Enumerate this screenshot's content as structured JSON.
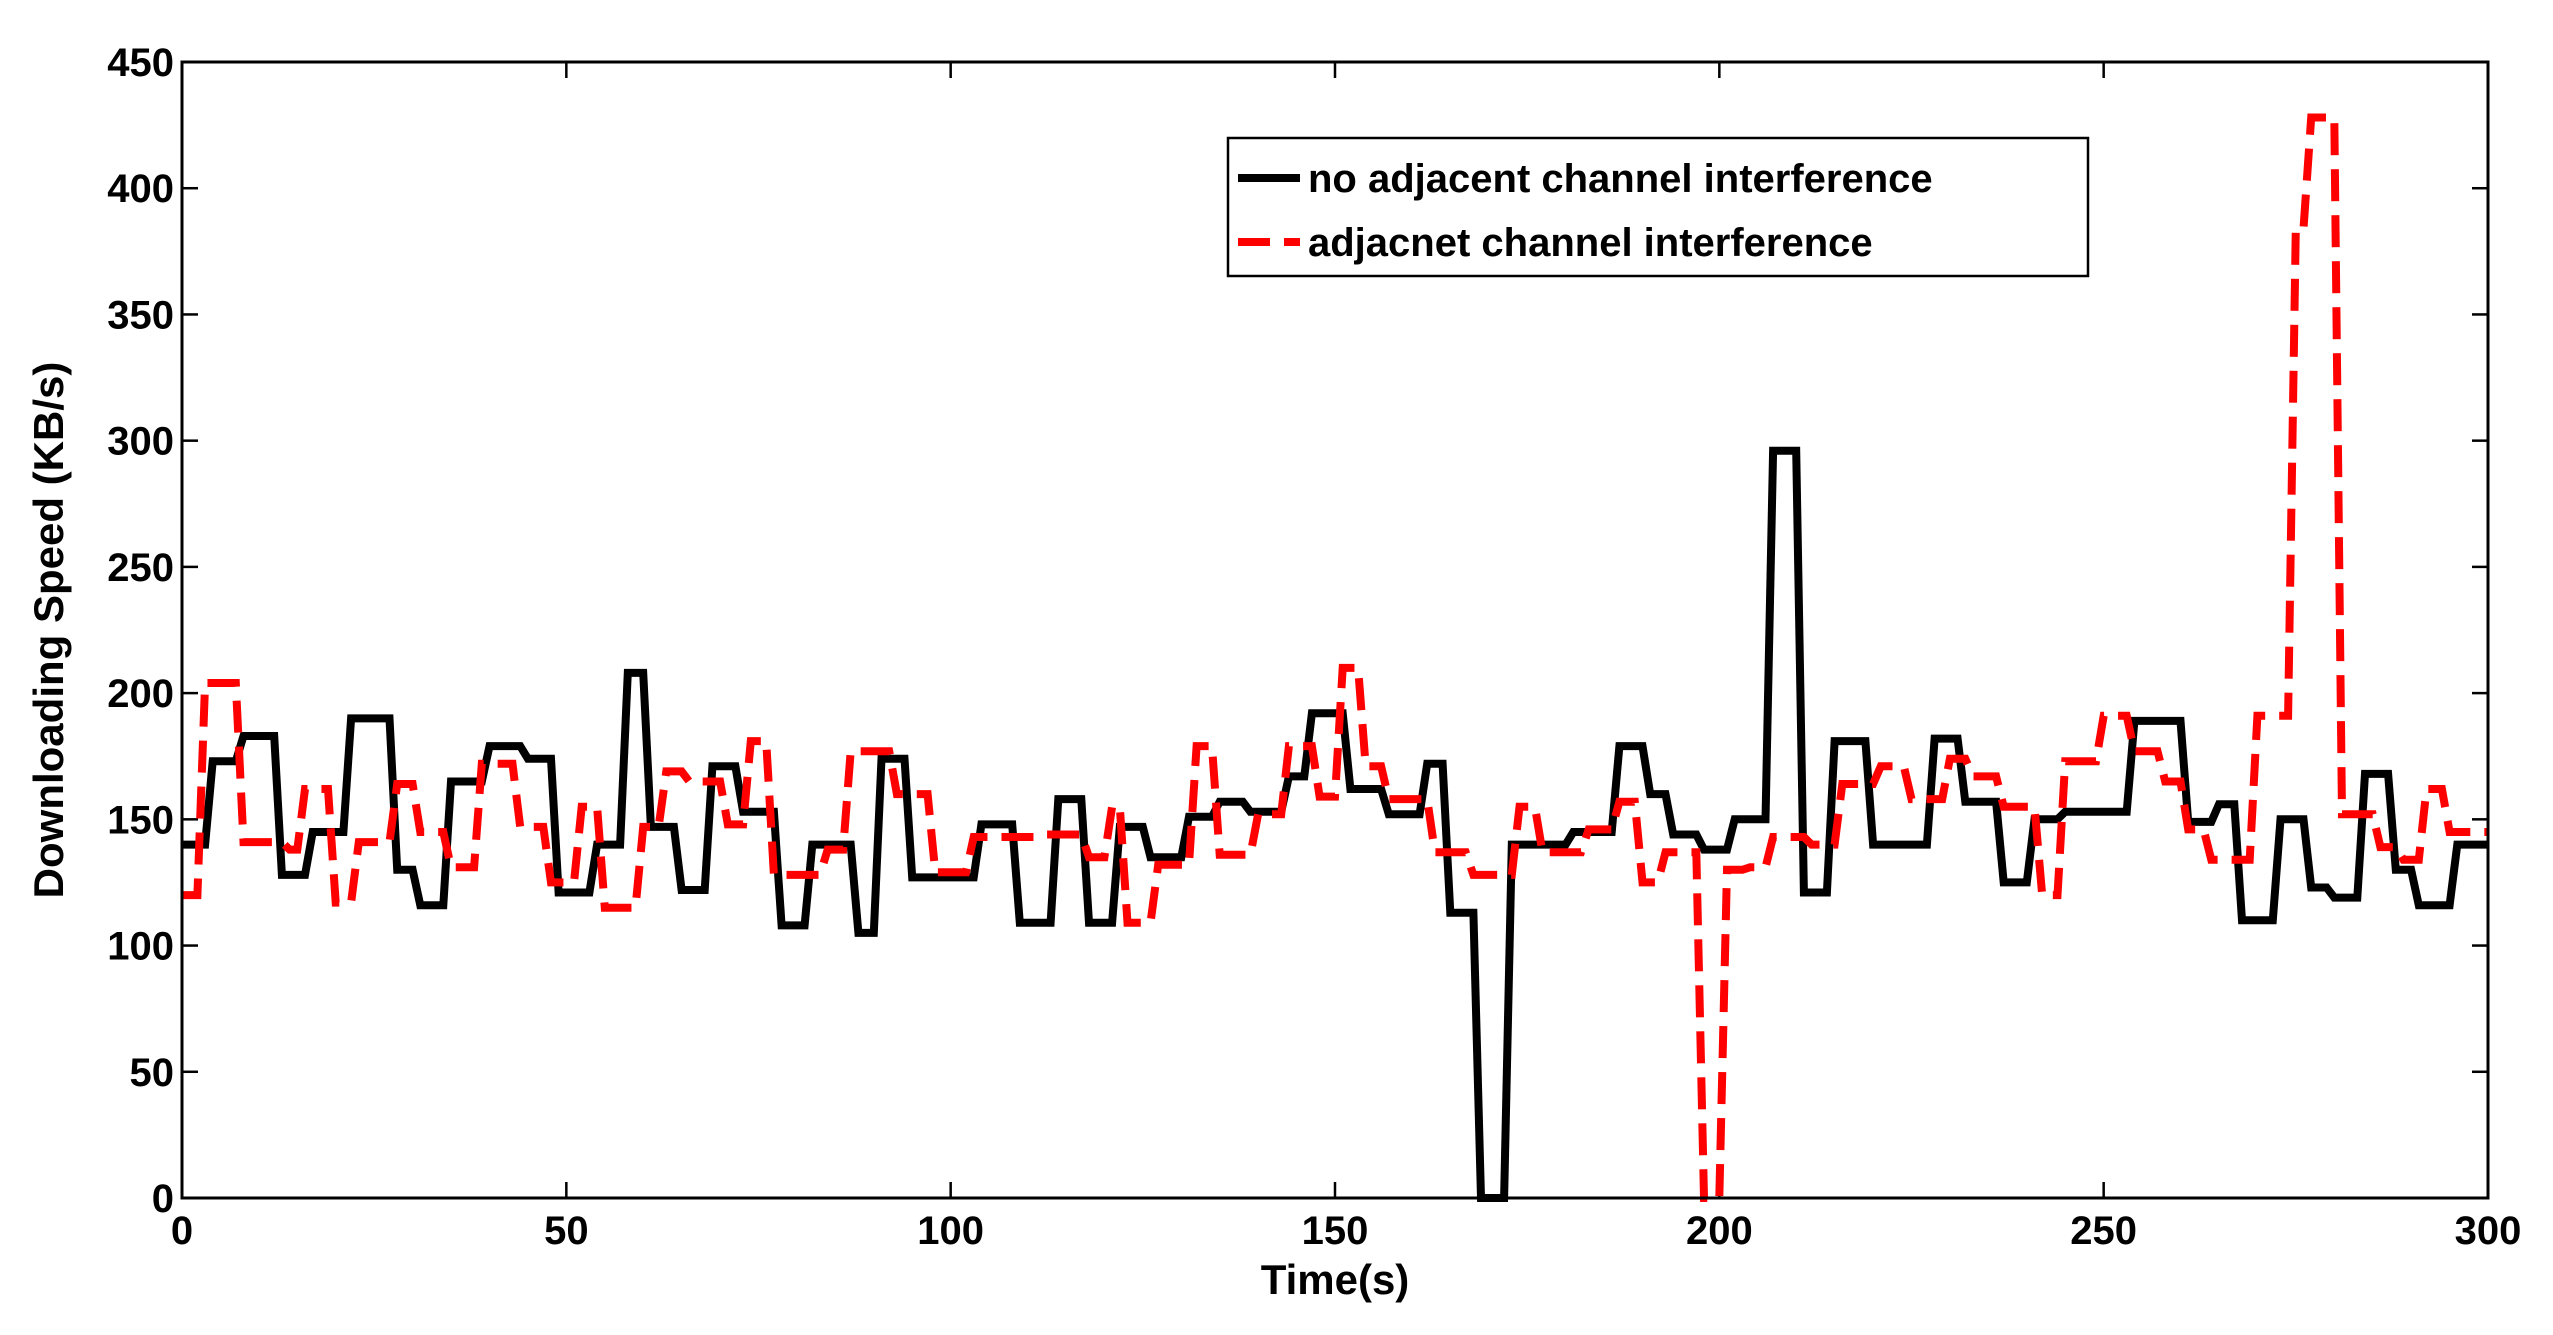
{
  "chart_data": {
    "type": "line",
    "title": "",
    "xlabel": "Time(s)",
    "ylabel": "Downloading Speed (KB/s)",
    "xlim": [
      0,
      300
    ],
    "ylim": [
      0,
      450
    ],
    "xticks": [
      0,
      50,
      100,
      150,
      200,
      250,
      300
    ],
    "yticks": [
      0,
      50,
      100,
      150,
      200,
      250,
      300,
      350,
      400,
      450
    ],
    "grid": false,
    "legend_position": "top-right",
    "series": [
      {
        "name": "no adjacent channel interference",
        "color": "#000000",
        "style": "solid",
        "points": [
          [
            0,
            140
          ],
          [
            3,
            140
          ],
          [
            4,
            173
          ],
          [
            7,
            173
          ],
          [
            8,
            183
          ],
          [
            12,
            183
          ],
          [
            13,
            128
          ],
          [
            16,
            128
          ],
          [
            17,
            145
          ],
          [
            21,
            145
          ],
          [
            22,
            190
          ],
          [
            27,
            190
          ],
          [
            28,
            130
          ],
          [
            30,
            130
          ],
          [
            31,
            116
          ],
          [
            34,
            116
          ],
          [
            35,
            165
          ],
          [
            39,
            165
          ],
          [
            40,
            179
          ],
          [
            44,
            179
          ],
          [
            45,
            174
          ],
          [
            48,
            174
          ],
          [
            49,
            121
          ],
          [
            53,
            121
          ],
          [
            54,
            140
          ],
          [
            57,
            140
          ],
          [
            58,
            208
          ],
          [
            60,
            208
          ],
          [
            61,
            147
          ],
          [
            64,
            147
          ],
          [
            65,
            122
          ],
          [
            68,
            122
          ],
          [
            69,
            171
          ],
          [
            72,
            171
          ],
          [
            73,
            153
          ],
          [
            77,
            153
          ],
          [
            78,
            108
          ],
          [
            81,
            108
          ],
          [
            82,
            140
          ],
          [
            87,
            140
          ],
          [
            88,
            105
          ],
          [
            90,
            105
          ],
          [
            91,
            174
          ],
          [
            94,
            174
          ],
          [
            95,
            127
          ],
          [
            103,
            127
          ],
          [
            104,
            148
          ],
          [
            108,
            148
          ],
          [
            109,
            109
          ],
          [
            113,
            109
          ],
          [
            114,
            158
          ],
          [
            117,
            158
          ],
          [
            118,
            109
          ],
          [
            121,
            109
          ],
          [
            122,
            147
          ],
          [
            125,
            147
          ],
          [
            126,
            135
          ],
          [
            130,
            135
          ],
          [
            131,
            151
          ],
          [
            134,
            151
          ],
          [
            135,
            157
          ],
          [
            138,
            157
          ],
          [
            139,
            153
          ],
          [
            143,
            153
          ],
          [
            144,
            167
          ],
          [
            146,
            167
          ],
          [
            147,
            192
          ],
          [
            151,
            192
          ],
          [
            152,
            162
          ],
          [
            156,
            162
          ],
          [
            157,
            152
          ],
          [
            161,
            152
          ],
          [
            162,
            172
          ],
          [
            164,
            172
          ],
          [
            165,
            113
          ],
          [
            168,
            113
          ],
          [
            169,
            0
          ],
          [
            172,
            0
          ],
          [
            173,
            140
          ],
          [
            180,
            140
          ],
          [
            181,
            145
          ],
          [
            186,
            145
          ],
          [
            187,
            179
          ],
          [
            190,
            179
          ],
          [
            191,
            160
          ],
          [
            193,
            160
          ],
          [
            194,
            144
          ],
          [
            197,
            144
          ],
          [
            198,
            138
          ],
          [
            201,
            138
          ],
          [
            202,
            150
          ],
          [
            206,
            150
          ],
          [
            207,
            296
          ],
          [
            210,
            296
          ],
          [
            211,
            121
          ],
          [
            214,
            121
          ],
          [
            215,
            181
          ],
          [
            219,
            181
          ],
          [
            220,
            140
          ],
          [
            227,
            140
          ],
          [
            228,
            182
          ],
          [
            231,
            182
          ],
          [
            232,
            157
          ],
          [
            236,
            157
          ],
          [
            237,
            125
          ],
          [
            240,
            125
          ],
          [
            241,
            150
          ],
          [
            244,
            150
          ],
          [
            245,
            153
          ],
          [
            253,
            153
          ],
          [
            254,
            189
          ],
          [
            260,
            189
          ],
          [
            261,
            149
          ],
          [
            264,
            149
          ],
          [
            265,
            156
          ],
          [
            267,
            156
          ],
          [
            268,
            110
          ],
          [
            272,
            110
          ],
          [
            273,
            150
          ],
          [
            276,
            150
          ],
          [
            277,
            123
          ],
          [
            279,
            123
          ],
          [
            280,
            119
          ],
          [
            283,
            119
          ],
          [
            284,
            168
          ],
          [
            287,
            168
          ],
          [
            288,
            130
          ],
          [
            290,
            130
          ],
          [
            291,
            116
          ],
          [
            295,
            116
          ],
          [
            296,
            140
          ],
          [
            300,
            140
          ]
        ]
      },
      {
        "name": "adjacnet channel interference",
        "color": "#ff0000",
        "style": "dashed",
        "points": [
          [
            0,
            120
          ],
          [
            2,
            120
          ],
          [
            3,
            204
          ],
          [
            7,
            204
          ],
          [
            8,
            141
          ],
          [
            13,
            141
          ],
          [
            14,
            138
          ],
          [
            15,
            138
          ],
          [
            16,
            162
          ],
          [
            19,
            162
          ],
          [
            20,
            117
          ],
          [
            22,
            117
          ],
          [
            23,
            141
          ],
          [
            27,
            141
          ],
          [
            28,
            164
          ],
          [
            30,
            164
          ],
          [
            31,
            145
          ],
          [
            34,
            145
          ],
          [
            35,
            131
          ],
          [
            38,
            131
          ],
          [
            39,
            172
          ],
          [
            43,
            172
          ],
          [
            44,
            147
          ],
          [
            47,
            147
          ],
          [
            48,
            125
          ],
          [
            51,
            125
          ],
          [
            52,
            155
          ],
          [
            54,
            155
          ],
          [
            55,
            115
          ],
          [
            59,
            115
          ],
          [
            60,
            147
          ],
          [
            62,
            147
          ],
          [
            63,
            169
          ],
          [
            65,
            169
          ],
          [
            66,
            165
          ],
          [
            70,
            165
          ],
          [
            71,
            148
          ],
          [
            73,
            148
          ],
          [
            74,
            181
          ],
          [
            76,
            181
          ],
          [
            77,
            128
          ],
          [
            83,
            128
          ],
          [
            84,
            138
          ],
          [
            86,
            138
          ],
          [
            87,
            177
          ],
          [
            92,
            177
          ],
          [
            93,
            160
          ],
          [
            97,
            160
          ],
          [
            98,
            129
          ],
          [
            102,
            129
          ],
          [
            103,
            143
          ],
          [
            111,
            143
          ],
          [
            112,
            144
          ],
          [
            117,
            144
          ],
          [
            118,
            135
          ],
          [
            120,
            135
          ],
          [
            121,
            155
          ],
          [
            122,
            155
          ],
          [
            123,
            109
          ],
          [
            126,
            109
          ],
          [
            127,
            132
          ],
          [
            131,
            132
          ],
          [
            132,
            179
          ],
          [
            134,
            179
          ],
          [
            135,
            136
          ],
          [
            139,
            136
          ],
          [
            140,
            152
          ],
          [
            143,
            152
          ],
          [
            144,
            179
          ],
          [
            147,
            179
          ],
          [
            148,
            159
          ],
          [
            150,
            159
          ],
          [
            151,
            210
          ],
          [
            153,
            210
          ],
          [
            154,
            171
          ],
          [
            156,
            171
          ],
          [
            157,
            158
          ],
          [
            162,
            158
          ],
          [
            163,
            137
          ],
          [
            167,
            137
          ],
          [
            168,
            128
          ],
          [
            173,
            128
          ],
          [
            174,
            155
          ],
          [
            176,
            155
          ],
          [
            177,
            137
          ],
          [
            182,
            137
          ],
          [
            183,
            146
          ],
          [
            186,
            146
          ],
          [
            187,
            157
          ],
          [
            189,
            157
          ],
          [
            190,
            125
          ],
          [
            192,
            125
          ],
          [
            193,
            137
          ],
          [
            197,
            137
          ],
          [
            198,
            0
          ],
          [
            200,
            0
          ],
          [
            201,
            130
          ],
          [
            203,
            130
          ],
          [
            204,
            131
          ],
          [
            206,
            131
          ],
          [
            207,
            143
          ],
          [
            211,
            143
          ],
          [
            212,
            140
          ],
          [
            215,
            140
          ],
          [
            216,
            164
          ],
          [
            220,
            164
          ],
          [
            221,
            171
          ],
          [
            224,
            171
          ],
          [
            225,
            158
          ],
          [
            229,
            158
          ],
          [
            230,
            174
          ],
          [
            232,
            174
          ],
          [
            233,
            167
          ],
          [
            236,
            167
          ],
          [
            237,
            155
          ],
          [
            241,
            155
          ],
          [
            242,
            120
          ],
          [
            244,
            120
          ],
          [
            245,
            173
          ],
          [
            249,
            173
          ],
          [
            250,
            191
          ],
          [
            253,
            191
          ],
          [
            254,
            177
          ],
          [
            257,
            177
          ],
          [
            258,
            165
          ],
          [
            260,
            165
          ],
          [
            261,
            146
          ],
          [
            263,
            146
          ],
          [
            264,
            134
          ],
          [
            268,
            134
          ],
          [
            269,
            134
          ],
          [
            270,
            191
          ],
          [
            274,
            191
          ],
          [
            275,
            384
          ],
          [
            276,
            384
          ],
          [
            277,
            428
          ],
          [
            280,
            428
          ],
          [
            281,
            152
          ],
          [
            285,
            152
          ],
          [
            286,
            139
          ],
          [
            288,
            139
          ],
          [
            289,
            134
          ],
          [
            291,
            134
          ],
          [
            292,
            162
          ],
          [
            294,
            162
          ],
          [
            295,
            145
          ],
          [
            300,
            145
          ]
        ]
      }
    ]
  }
}
